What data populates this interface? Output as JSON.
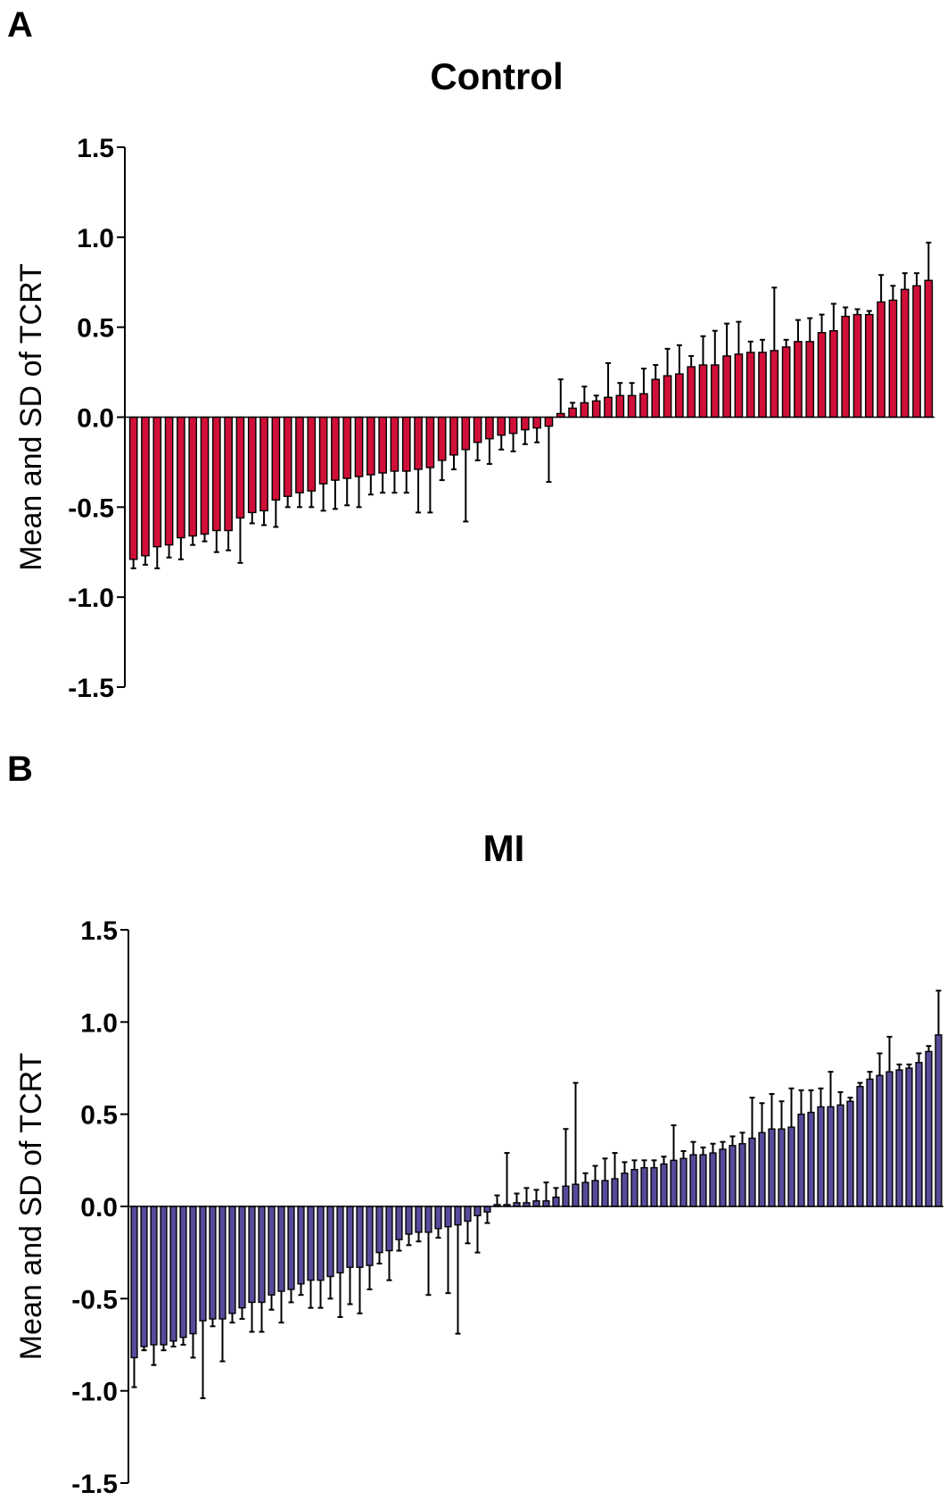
{
  "chart_data": [
    {
      "panel_label": "A",
      "type": "bar",
      "title": "Control",
      "ylabel": "Mean and SD of TCRT",
      "ylim": [
        -1.5,
        1.5
      ],
      "yticks": [
        "1.5",
        "1.0",
        "0.5",
        "0.0",
        "-0.5",
        "-1.0",
        "-1.5"
      ],
      "bar_color": "#d01038",
      "error_bars": "SD",
      "values": [
        -0.79,
        -0.77,
        -0.72,
        -0.71,
        -0.67,
        -0.66,
        -0.65,
        -0.63,
        -0.63,
        -0.56,
        -0.53,
        -0.52,
        -0.46,
        -0.44,
        -0.42,
        -0.41,
        -0.37,
        -0.35,
        -0.34,
        -0.33,
        -0.32,
        -0.31,
        -0.3,
        -0.3,
        -0.29,
        -0.28,
        -0.24,
        -0.21,
        -0.18,
        -0.14,
        -0.12,
        -0.1,
        -0.09,
        -0.07,
        -0.06,
        -0.05,
        0.02,
        0.05,
        0.08,
        0.09,
        0.11,
        0.12,
        0.12,
        0.13,
        0.21,
        0.23,
        0.24,
        0.28,
        0.29,
        0.29,
        0.34,
        0.35,
        0.36,
        0.36,
        0.37,
        0.39,
        0.42,
        0.42,
        0.47,
        0.48,
        0.56,
        0.57,
        0.57,
        0.64,
        0.65,
        0.71,
        0.73,
        0.76
      ],
      "sd": [
        0.05,
        0.05,
        0.12,
        0.07,
        0.12,
        0.05,
        0.04,
        0.12,
        0.11,
        0.25,
        0.06,
        0.08,
        0.15,
        0.06,
        0.08,
        0.09,
        0.15,
        0.16,
        0.15,
        0.17,
        0.11,
        0.11,
        0.12,
        0.12,
        0.24,
        0.25,
        0.11,
        0.08,
        0.4,
        0.1,
        0.14,
        0.08,
        0.1,
        0.08,
        0.08,
        0.31,
        0.19,
        0.03,
        0.09,
        0.03,
        0.19,
        0.07,
        0.07,
        0.14,
        0.08,
        0.15,
        0.16,
        0.06,
        0.16,
        0.19,
        0.18,
        0.18,
        0.06,
        0.07,
        0.35,
        0.04,
        0.12,
        0.13,
        0.1,
        0.15,
        0.05,
        0.03,
        0.02,
        0.15,
        0.08,
        0.09,
        0.07,
        0.21
      ]
    },
    {
      "panel_label": "B",
      "type": "bar",
      "title": "MI",
      "ylabel": "Mean and SD of TCRT",
      "ylim": [
        -1.5,
        1.5
      ],
      "yticks": [
        "1.5",
        "1.0",
        "0.5",
        "0.0",
        "-0.5",
        "-1.0",
        "-1.5"
      ],
      "bar_color": "#584a9a",
      "error_bars": "SD",
      "values": [
        -0.82,
        -0.76,
        -0.75,
        -0.75,
        -0.73,
        -0.71,
        -0.69,
        -0.62,
        -0.61,
        -0.61,
        -0.58,
        -0.55,
        -0.52,
        -0.52,
        -0.48,
        -0.46,
        -0.45,
        -0.42,
        -0.4,
        -0.4,
        -0.38,
        -0.36,
        -0.33,
        -0.33,
        -0.32,
        -0.25,
        -0.24,
        -0.18,
        -0.15,
        -0.14,
        -0.14,
        -0.12,
        -0.11,
        -0.1,
        -0.08,
        -0.05,
        -0.03,
        0.01,
        0.01,
        0.02,
        0.02,
        0.03,
        0.03,
        0.05,
        0.11,
        0.12,
        0.13,
        0.14,
        0.14,
        0.15,
        0.18,
        0.2,
        0.21,
        0.21,
        0.23,
        0.25,
        0.26,
        0.28,
        0.28,
        0.29,
        0.31,
        0.33,
        0.34,
        0.37,
        0.4,
        0.42,
        0.42,
        0.43,
        0.5,
        0.51,
        0.54,
        0.54,
        0.55,
        0.57,
        0.65,
        0.69,
        0.71,
        0.73,
        0.74,
        0.75,
        0.78,
        0.84,
        0.93
      ],
      "sd": [
        0.16,
        0.02,
        0.11,
        0.03,
        0.03,
        0.04,
        0.13,
        0.42,
        0.04,
        0.23,
        0.05,
        0.06,
        0.16,
        0.16,
        0.08,
        0.17,
        0.07,
        0.06,
        0.15,
        0.15,
        0.12,
        0.24,
        0.2,
        0.25,
        0.13,
        0.06,
        0.16,
        0.06,
        0.06,
        0.05,
        0.34,
        0.05,
        0.36,
        0.59,
        0.12,
        0.2,
        0.06,
        0.05,
        0.28,
        0.05,
        0.08,
        0.06,
        0.1,
        0.05,
        0.31,
        0.55,
        0.05,
        0.08,
        0.12,
        0.14,
        0.06,
        0.05,
        0.04,
        0.04,
        0.04,
        0.19,
        0.04,
        0.07,
        0.04,
        0.05,
        0.04,
        0.05,
        0.06,
        0.22,
        0.16,
        0.19,
        0.15,
        0.21,
        0.13,
        0.12,
        0.1,
        0.19,
        0.07,
        0.02,
        0.02,
        0.04,
        0.12,
        0.19,
        0.03,
        0.02,
        0.05,
        0.03,
        0.24
      ]
    }
  ]
}
